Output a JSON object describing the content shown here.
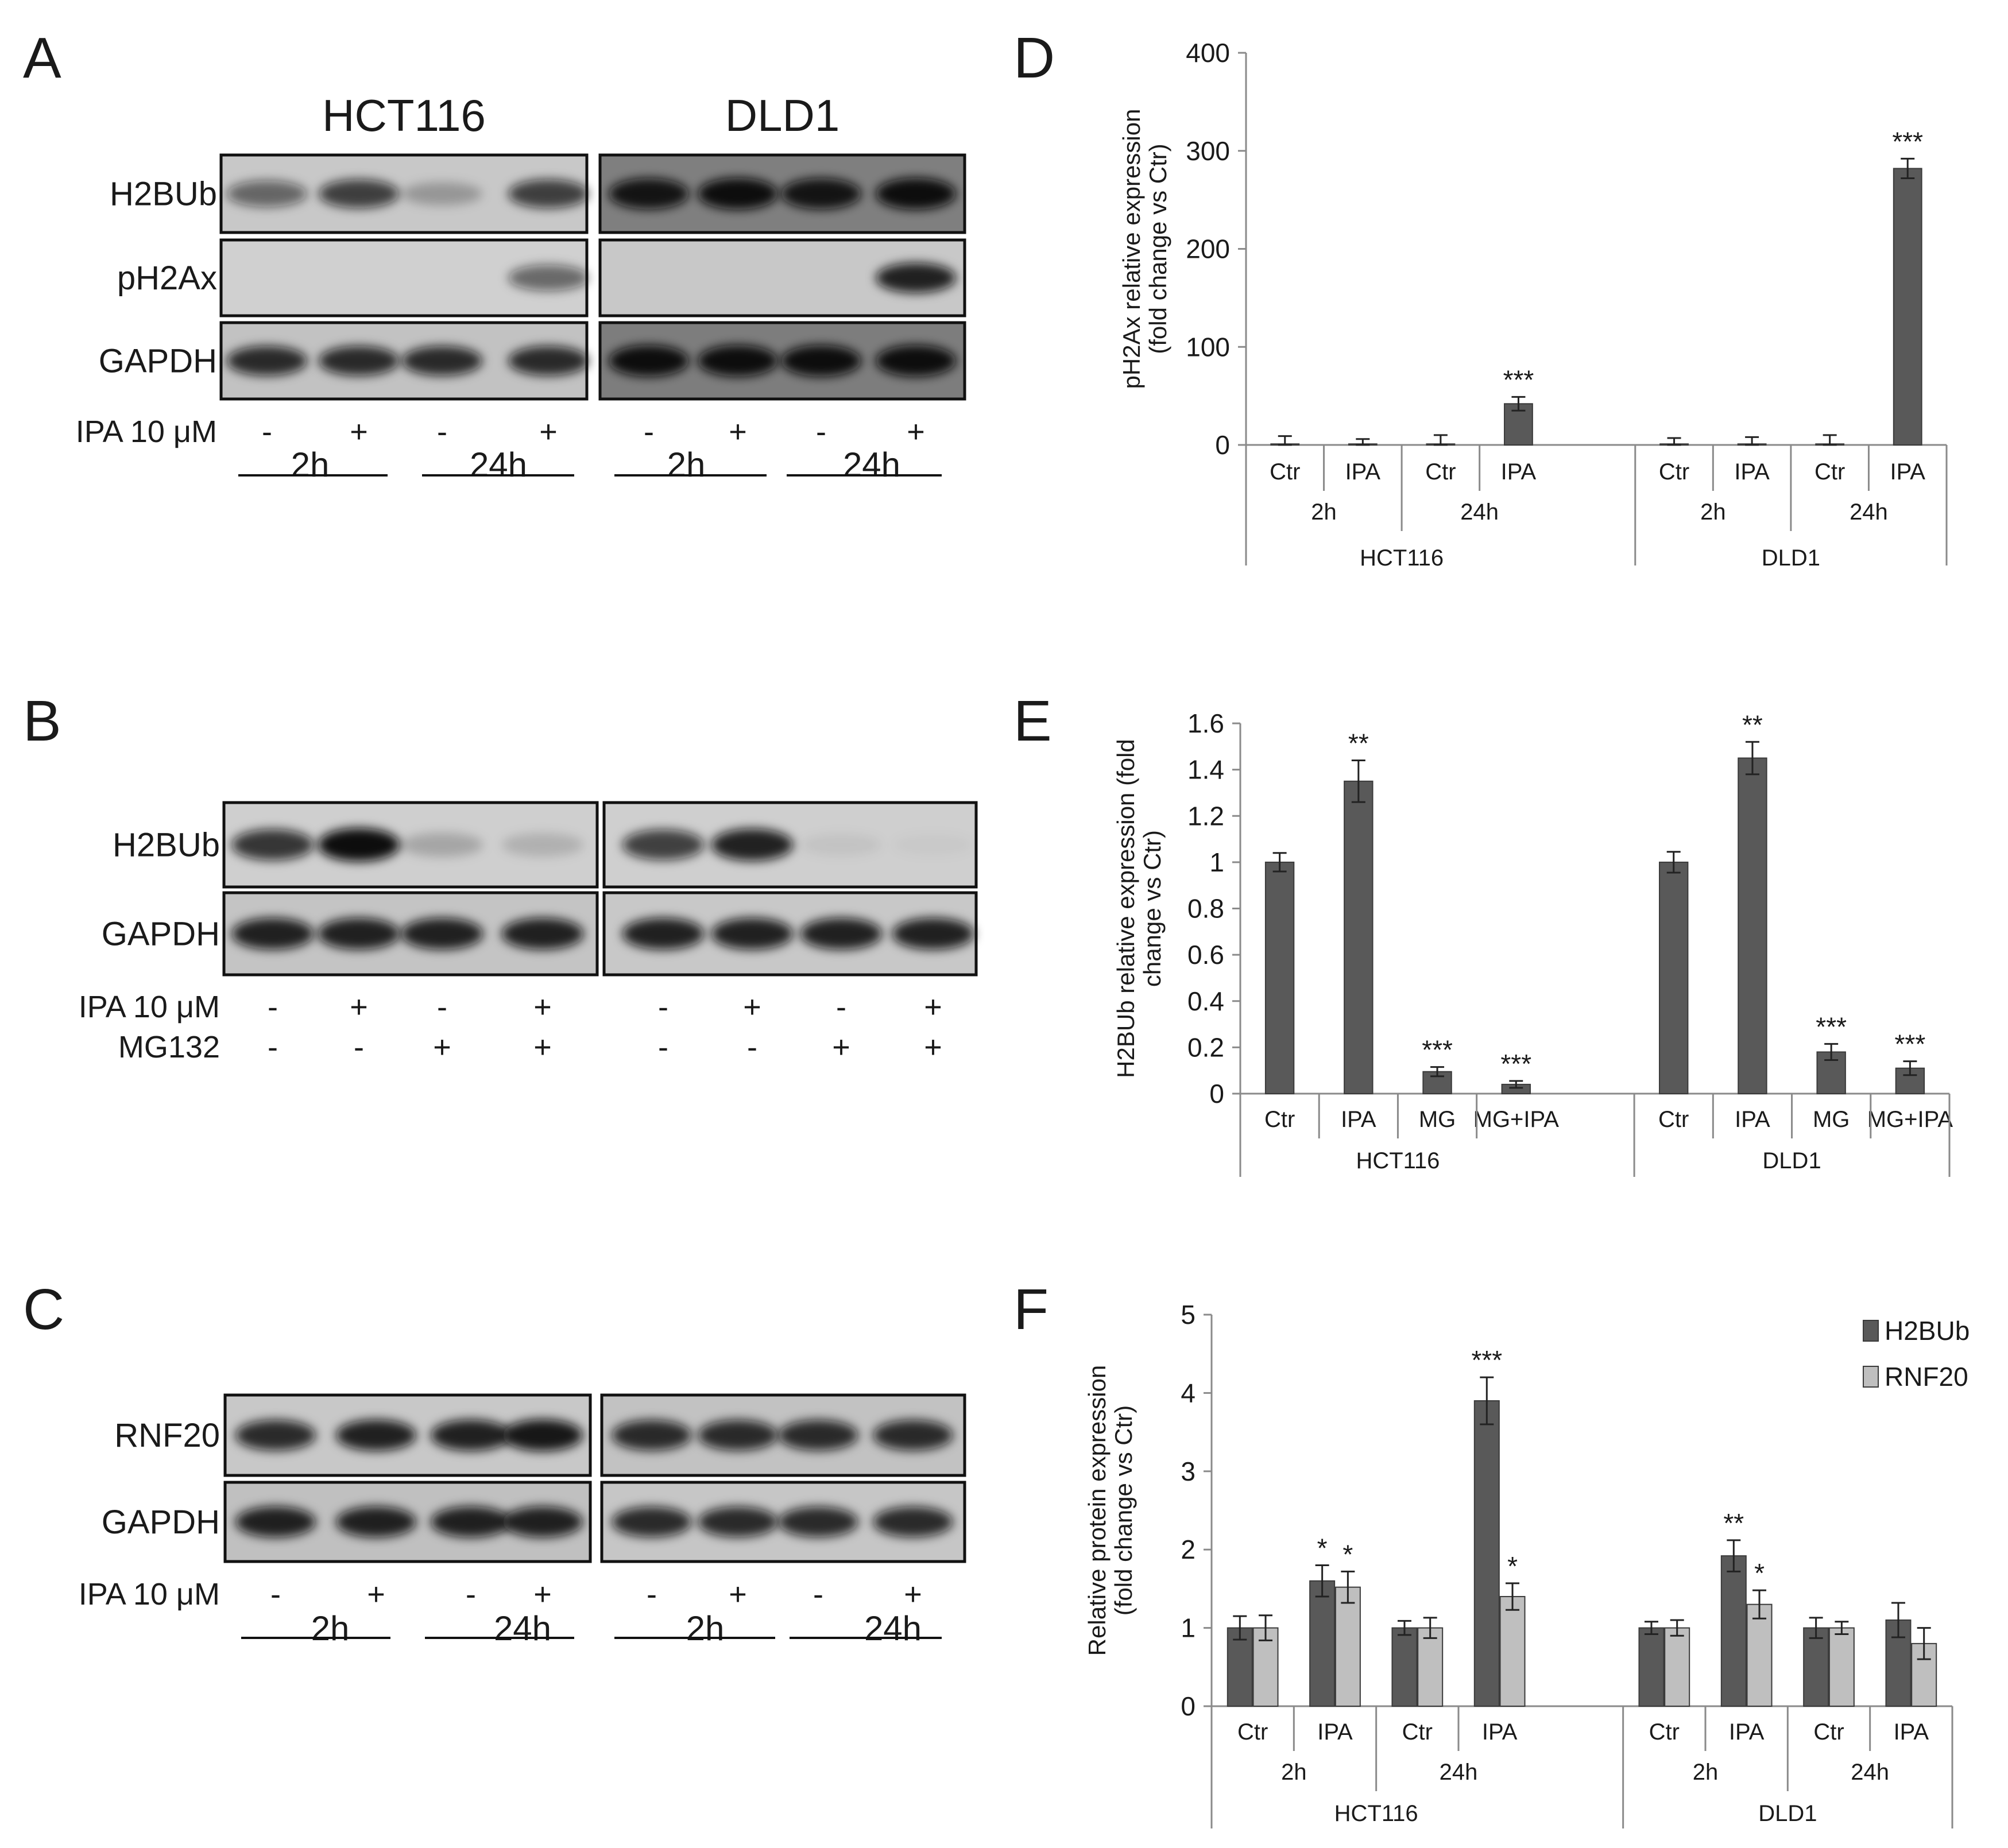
{
  "panels": {
    "A": {
      "letter": "A",
      "cell_lines": [
        "HCT116",
        "DLD1"
      ],
      "rows": [
        {
          "label": "H2BUb",
          "bg": [
            "#c8c8c8",
            "#7f7f7f"
          ],
          "bands": [
            0.55,
            0.75,
            0.25,
            0.75,
            0.95,
            1.0,
            0.95,
            1.0
          ]
        },
        {
          "label": "pH2Ax",
          "bg": [
            "#d0d0d0",
            "#c8c8c8"
          ],
          "bands": [
            0,
            0,
            0,
            0.55,
            0,
            0,
            0,
            0.9
          ]
        },
        {
          "label": "GAPDH",
          "bg": [
            "#c2c2c2",
            "#7d7d7d"
          ],
          "bands": [
            0.85,
            0.85,
            0.85,
            0.85,
            1.0,
            1.0,
            1.0,
            1.0
          ]
        }
      ],
      "treatments": [
        {
          "label": "IPA 10 μM",
          "signs": [
            "-",
            "+",
            "-",
            "+",
            "-",
            "+",
            "-",
            "+"
          ]
        }
      ],
      "times": [
        "2h",
        "24h",
        "2h",
        "24h"
      ]
    },
    "B": {
      "letter": "B",
      "cell_lines": [],
      "rows": [
        {
          "label": "H2BUb",
          "bg": [
            "#cfcfcf",
            "#cfcfcf"
          ],
          "bands": [
            0.8,
            1.0,
            0.2,
            0.15,
            0.75,
            0.9,
            0.06,
            0.03
          ]
        },
        {
          "label": "GAPDH",
          "bg": [
            "#c4c4c4",
            "#c8c8c8"
          ],
          "bands": [
            0.9,
            0.9,
            0.9,
            0.9,
            0.9,
            0.9,
            0.9,
            0.9
          ]
        }
      ],
      "treatments": [
        {
          "label": "IPA 10 μM",
          "signs": [
            "-",
            "+",
            "-",
            "+",
            "-",
            "+",
            "-",
            "+"
          ]
        },
        {
          "label": "MG132",
          "signs": [
            "-",
            "-",
            "+",
            "+",
            "-",
            "-",
            "+",
            "+"
          ]
        }
      ],
      "times": []
    },
    "C": {
      "letter": "C",
      "cell_lines": [],
      "rows": [
        {
          "label": "RNF20",
          "bg": [
            "#c8c8c8",
            "#c2c2c2"
          ],
          "bands": [
            0.85,
            0.9,
            0.9,
            0.95,
            0.85,
            0.85,
            0.85,
            0.85
          ]
        },
        {
          "label": "GAPDH",
          "bg": [
            "#c0c0c0",
            "#c6c6c6"
          ],
          "bands": [
            0.9,
            0.9,
            0.9,
            0.9,
            0.85,
            0.85,
            0.85,
            0.85
          ]
        }
      ],
      "treatments": [
        {
          "label": "IPA 10 μM",
          "signs": [
            "-",
            "+",
            "-",
            "+",
            "-",
            "+",
            "-",
            "+"
          ]
        }
      ],
      "times": [
        "2h",
        "24h",
        "2h",
        "24h"
      ]
    }
  },
  "chart_data": [
    {
      "panel": "D",
      "type": "bar",
      "ylabel": "pH2Ax relative expression (fold change vs Ctr)",
      "ylim": [
        0,
        400
      ],
      "yticks": [
        0,
        100,
        200,
        300,
        400
      ],
      "categories": [
        "Ctr",
        "IPA",
        "Ctr",
        "IPA",
        "Ctr",
        "IPA",
        "Ctr",
        "IPA"
      ],
      "groups_time": [
        "2h",
        "24h",
        "2h",
        "24h"
      ],
      "groups_cell": [
        "HCT116",
        "DLD1"
      ],
      "series": [
        {
          "values": [
            1,
            1,
            1,
            42,
            1,
            1,
            1,
            282
          ],
          "errors": [
            8,
            5,
            9,
            7,
            6,
            7,
            9,
            10
          ],
          "sig": [
            "",
            "",
            "",
            "***",
            "",
            "",
            "",
            "***"
          ],
          "color": "#595959"
        }
      ],
      "legend": []
    },
    {
      "panel": "E",
      "type": "bar",
      "ylabel": "H2BUb relative expression (fold change vs Ctr)",
      "ylim": [
        0,
        1.6
      ],
      "yticks": [
        "0",
        "0.2",
        "0.4",
        "0.6",
        "0.8",
        "1",
        "1.2",
        "1.4",
        "1.6"
      ],
      "categories": [
        "Ctr",
        "IPA",
        "MG",
        "MG+IPA",
        "Ctr",
        "IPA",
        "MG",
        "MG+IPA"
      ],
      "groups_time": [],
      "groups_cell": [
        "HCT116",
        "DLD1"
      ],
      "series": [
        {
          "values": [
            1.0,
            1.35,
            0.095,
            0.04,
            1.0,
            1.45,
            0.18,
            0.11
          ],
          "errors": [
            0.04,
            0.09,
            0.02,
            0.015,
            0.045,
            0.07,
            0.035,
            0.03
          ],
          "sig": [
            "",
            "**",
            "***",
            "***",
            "",
            "**",
            "***",
            "***"
          ],
          "color": "#595959"
        }
      ],
      "legend": []
    },
    {
      "panel": "F",
      "type": "bar",
      "ylabel": "Relative protein expression (fold change vs Ctr)",
      "ylim": [
        0,
        5
      ],
      "yticks": [
        0,
        1,
        2,
        3,
        4,
        5
      ],
      "categories": [
        "Ctr",
        "IPA",
        "Ctr",
        "IPA",
        "Ctr",
        "IPA",
        "Ctr",
        "IPA"
      ],
      "groups_time": [
        "2h",
        "24h",
        "2h",
        "24h"
      ],
      "groups_cell": [
        "HCT116",
        "DLD1"
      ],
      "series": [
        {
          "name": "H2BUb",
          "values": [
            1.0,
            1.6,
            1.0,
            3.9,
            1.0,
            1.92,
            1.0,
            1.1
          ],
          "errors": [
            0.15,
            0.2,
            0.09,
            0.3,
            0.08,
            0.2,
            0.13,
            0.22
          ],
          "sig": [
            "",
            "*",
            "",
            "***",
            "",
            "**",
            "",
            ""
          ],
          "color": "#595959"
        },
        {
          "name": "RNF20",
          "values": [
            1.0,
            1.52,
            1.0,
            1.4,
            1.0,
            1.3,
            1.0,
            0.8
          ],
          "errors": [
            0.16,
            0.2,
            0.13,
            0.17,
            0.1,
            0.18,
            0.08,
            0.2
          ],
          "sig": [
            "",
            "*",
            "",
            "*",
            "",
            "*",
            "",
            ""
          ],
          "color": "#bfbfbf"
        }
      ],
      "legend": [
        "H2BUb",
        "RNF20"
      ]
    }
  ]
}
